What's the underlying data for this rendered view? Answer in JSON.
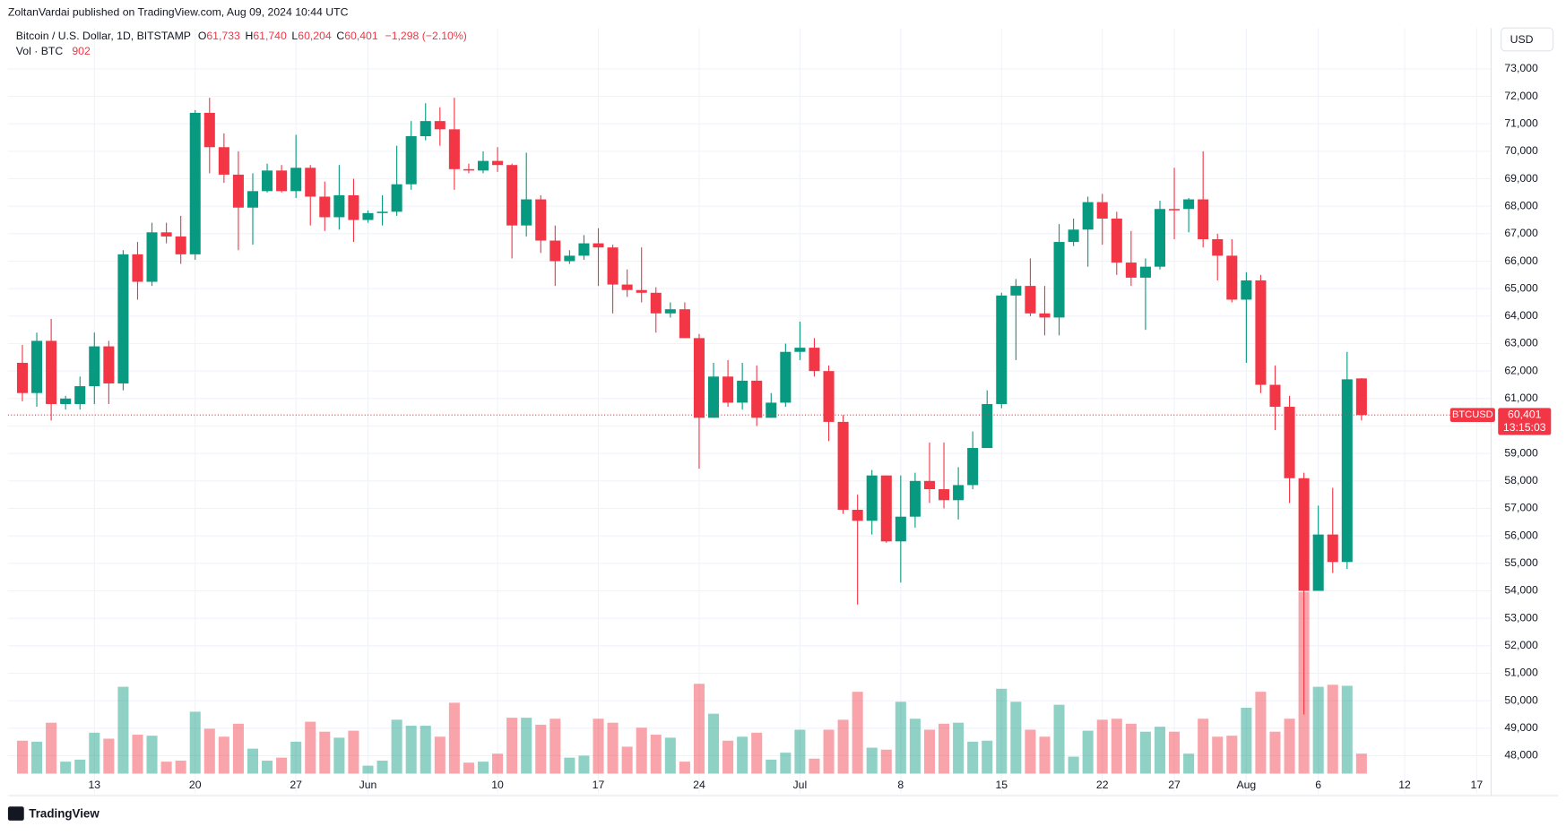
{
  "header": {
    "publisher": "ZoltanVardai published on TradingView.com, Aug 09, 2024 10:44 UTC",
    "symbol": "Bitcoin / U.S. Dollar, 1D, BITSTAMP",
    "ohlc": [
      {
        "key": "O",
        "value": "61,733"
      },
      {
        "key": "H",
        "value": "61,740"
      },
      {
        "key": "L",
        "value": "60,204"
      },
      {
        "key": "C",
        "value": "60,401"
      }
    ],
    "change": "−1,298 (−2.10%)",
    "volume_label": "Vol · BTC",
    "volume_value": "902",
    "currency": "USD"
  },
  "footer": {
    "brand": "TradingView"
  },
  "chart_data": {
    "type": "candlestick",
    "up_color": "#089981",
    "down_color": "#f23645",
    "grid": true,
    "symbol_tag": "BTCUSD",
    "last_price_label": "60,401",
    "countdown": "13:15:03",
    "x": [
      "2024-05-08",
      "2024-05-09",
      "2024-05-10",
      "2024-05-11",
      "2024-05-12",
      "2024-05-13",
      "2024-05-14",
      "2024-05-15",
      "2024-05-16",
      "2024-05-17",
      "2024-05-18",
      "2024-05-19",
      "2024-05-20",
      "2024-05-21",
      "2024-05-22",
      "2024-05-23",
      "2024-05-24",
      "2024-05-25",
      "2024-05-26",
      "2024-05-27",
      "2024-05-28",
      "2024-05-29",
      "2024-05-30",
      "2024-05-31",
      "2024-06-01",
      "2024-06-02",
      "2024-06-03",
      "2024-06-04",
      "2024-06-05",
      "2024-06-06",
      "2024-06-07",
      "2024-06-08",
      "2024-06-09",
      "2024-06-10",
      "2024-06-11",
      "2024-06-12",
      "2024-06-13",
      "2024-06-14",
      "2024-06-15",
      "2024-06-16",
      "2024-06-17",
      "2024-06-18",
      "2024-06-19",
      "2024-06-20",
      "2024-06-21",
      "2024-06-22",
      "2024-06-23",
      "2024-06-24",
      "2024-06-25",
      "2024-06-26",
      "2024-06-27",
      "2024-06-28",
      "2024-06-29",
      "2024-06-30",
      "2024-07-01",
      "2024-07-02",
      "2024-07-03",
      "2024-07-04",
      "2024-07-05",
      "2024-07-06",
      "2024-07-07",
      "2024-07-08",
      "2024-07-09",
      "2024-07-10",
      "2024-07-11",
      "2024-07-12",
      "2024-07-13",
      "2024-07-14",
      "2024-07-15",
      "2024-07-16",
      "2024-07-17",
      "2024-07-18",
      "2024-07-19",
      "2024-07-20",
      "2024-07-21",
      "2024-07-22",
      "2024-07-23",
      "2024-07-24",
      "2024-07-25",
      "2024-07-26",
      "2024-07-27",
      "2024-07-28",
      "2024-07-29",
      "2024-07-30",
      "2024-07-31",
      "2024-08-01",
      "2024-08-02",
      "2024-08-03",
      "2024-08-04",
      "2024-08-05",
      "2024-08-06",
      "2024-08-07",
      "2024-08-08",
      "2024-08-09"
    ],
    "open": [
      62300,
      61200,
      63100,
      60800,
      60800,
      61450,
      62900,
      61550,
      66250,
      65250,
      67050,
      66900,
      66250,
      71400,
      70150,
      69150,
      67950,
      68550,
      69300,
      68550,
      69400,
      68350,
      67600,
      68400,
      67500,
      67750,
      67800,
      68800,
      70550,
      71100,
      70800,
      69350,
      69300,
      69650,
      69500,
      67300,
      68250,
      66750,
      66000,
      66200,
      66650,
      66500,
      65150,
      64950,
      64850,
      64100,
      64250,
      63200,
      60300,
      61800,
      60850,
      61650,
      60300,
      60850,
      62700,
      62850,
      62000,
      60150,
      56950,
      56550,
      58200,
      55800,
      56700,
      58000,
      57700,
      57300,
      57850,
      59200,
      60800,
      64750,
      65100,
      64100,
      63950,
      66700,
      67150,
      68150,
      67550,
      65950,
      65400,
      65800,
      67900,
      67900,
      68250,
      66800,
      66200,
      64600,
      65300,
      61500,
      60700,
      58100,
      54000,
      56050,
      55050,
      61733
    ],
    "high": [
      62950,
      63400,
      63900,
      61100,
      61800,
      63400,
      63100,
      66400,
      66700,
      67400,
      67400,
      67650,
      71500,
      71950,
      70650,
      70000,
      69200,
      69550,
      69500,
      70600,
      69500,
      68900,
      69500,
      69000,
      67850,
      68400,
      70200,
      71100,
      71750,
      71600,
      71950,
      69550,
      70000,
      70150,
      69550,
      69950,
      68400,
      67300,
      66400,
      66950,
      67200,
      66600,
      65700,
      66500,
      65050,
      64500,
      64500,
      63350,
      62300,
      62400,
      62300,
      62200,
      61200,
      63000,
      63800,
      63200,
      62200,
      60400,
      57500,
      58400,
      58200,
      58200,
      58300,
      59400,
      59400,
      58500,
      59800,
      61300,
      64850,
      65350,
      66100,
      65100,
      67350,
      67550,
      68350,
      68450,
      67800,
      67100,
      66100,
      68200,
      69400,
      68300,
      70000,
      67000,
      66800,
      65600,
      65500,
      62200,
      61100,
      58300,
      57100,
      57750,
      62700,
      61740
    ],
    "low": [
      60900,
      60700,
      60200,
      60600,
      60600,
      60800,
      60800,
      61300,
      64600,
      65100,
      66650,
      65900,
      66050,
      69200,
      68850,
      66400,
      66600,
      68500,
      68500,
      68300,
      67300,
      67100,
      67150,
      66700,
      67400,
      67300,
      67650,
      68600,
      70400,
      70200,
      68600,
      69200,
      69200,
      69250,
      66100,
      66900,
      66300,
      65100,
      65900,
      66050,
      65100,
      64100,
      64700,
      64500,
      63400,
      63950,
      63200,
      58450,
      60300,
      60700,
      60600,
      60000,
      60300,
      60700,
      62400,
      61800,
      59450,
      56800,
      53500,
      56050,
      55750,
      54300,
      56300,
      57200,
      57000,
      56600,
      57700,
      59200,
      60650,
      62400,
      64000,
      63300,
      63300,
      66550,
      65800,
      66600,
      65500,
      65100,
      63500,
      65700,
      66800,
      67050,
      66500,
      65300,
      64500,
      62300,
      61200,
      59850,
      57200,
      49500,
      54000,
      54650,
      54800,
      60204
    ],
    "close": [
      61200,
      63100,
      60800,
      61000,
      61450,
      62900,
      61550,
      66250,
      65250,
      67050,
      66900,
      66250,
      71400,
      70150,
      69150,
      67950,
      68550,
      69300,
      68550,
      69400,
      68350,
      67600,
      68400,
      67500,
      67750,
      67800,
      68800,
      70550,
      71100,
      70800,
      69350,
      69300,
      69650,
      69500,
      67300,
      68250,
      66750,
      66000,
      66200,
      66650,
      66500,
      65150,
      64950,
      64850,
      64100,
      64250,
      63200,
      60300,
      61800,
      60850,
      61650,
      60300,
      60850,
      62700,
      62850,
      62000,
      60150,
      56950,
      56550,
      58200,
      55800,
      56700,
      58000,
      57700,
      57300,
      57850,
      59200,
      60800,
      64750,
      65100,
      64100,
      63950,
      66700,
      67150,
      68150,
      67550,
      65950,
      65400,
      65800,
      67900,
      67850,
      68250,
      66800,
      66200,
      64600,
      65300,
      61500,
      60700,
      58100,
      54000,
      56050,
      55050,
      61700,
      60401
    ],
    "volume": [
      1485,
      1440,
      2295,
      540,
      630,
      1845,
      1575,
      3915,
      1755,
      1710,
      540,
      585,
      2790,
      2025,
      1665,
      2250,
      1125,
      585,
      720,
      1440,
      2340,
      1890,
      1620,
      1935,
      360,
      585,
      2430,
      2160,
      2160,
      1665,
      3195,
      495,
      540,
      900,
      2520,
      2520,
      2205,
      2475,
      720,
      810,
      2475,
      2295,
      1215,
      2070,
      1755,
      1620,
      540,
      4050,
      2700,
      1485,
      1665,
      1845,
      630,
      945,
      1980,
      675,
      1980,
      2430,
      3690,
      1170,
      1080,
      3240,
      2475,
      1980,
      2250,
      2295,
      1440,
      1485,
      3825,
      3240,
      1980,
      1665,
      3105,
      765,
      1935,
      2430,
      2475,
      2250,
      1890,
      2115,
      1890,
      900,
      2475,
      1665,
      1710,
      2970,
      3690,
      1890,
      2475,
      8190,
      3915,
      4005,
      3960,
      902
    ],
    "xlim": [
      "2024-05-07",
      "2024-08-18"
    ],
    "xticks": [
      {
        "value": "2024-05-13",
        "label": "13"
      },
      {
        "value": "2024-05-20",
        "label": "20"
      },
      {
        "value": "2024-05-27",
        "label": "27"
      },
      {
        "value": "2024-06-01",
        "label": "Jun"
      },
      {
        "value": "2024-06-10",
        "label": "10"
      },
      {
        "value": "2024-06-17",
        "label": "17"
      },
      {
        "value": "2024-06-24",
        "label": "24"
      },
      {
        "value": "2024-07-01",
        "label": "Jul"
      },
      {
        "value": "2024-07-08",
        "label": "8"
      },
      {
        "value": "2024-07-15",
        "label": "15"
      },
      {
        "value": "2024-07-22",
        "label": "22"
      },
      {
        "value": "2024-07-27",
        "label": "27"
      },
      {
        "value": "2024-08-01",
        "label": "Aug"
      },
      {
        "value": "2024-08-06",
        "label": "6"
      },
      {
        "value": "2024-08-12",
        "label": "12"
      },
      {
        "value": "2024-08-17",
        "label": "17"
      }
    ],
    "ylim": [
      46620,
      74490
    ],
    "yticks": [
      {
        "value": 48000,
        "label": "48,000"
      },
      {
        "value": 49000,
        "label": "49,000"
      },
      {
        "value": 50000,
        "label": "50,000"
      },
      {
        "value": 51000,
        "label": "51,000"
      },
      {
        "value": 52000,
        "label": "52,000"
      },
      {
        "value": 53000,
        "label": "53,000"
      },
      {
        "value": 54000,
        "label": "54,000"
      },
      {
        "value": 55000,
        "label": "55,000"
      },
      {
        "value": 56000,
        "label": "56,000"
      },
      {
        "value": 57000,
        "label": "57,000"
      },
      {
        "value": 58000,
        "label": "58,000"
      },
      {
        "value": 59000,
        "label": "59,000"
      },
      {
        "value": 60000,
        "label": "60,000"
      },
      {
        "value": 61000,
        "label": "61,000"
      },
      {
        "value": 62000,
        "label": "62,000"
      },
      {
        "value": 63000,
        "label": "63,000"
      },
      {
        "value": 64000,
        "label": "64,000"
      },
      {
        "value": 65000,
        "label": "65,000"
      },
      {
        "value": 66000,
        "label": "66,000"
      },
      {
        "value": 67000,
        "label": "67,000"
      },
      {
        "value": 68000,
        "label": "68,000"
      },
      {
        "value": 69000,
        "label": "69,000"
      },
      {
        "value": 70000,
        "label": "70,000"
      },
      {
        "value": 71000,
        "label": "71,000"
      },
      {
        "value": 72000,
        "label": "72,000"
      },
      {
        "value": 73000,
        "label": "73,000"
      }
    ]
  }
}
